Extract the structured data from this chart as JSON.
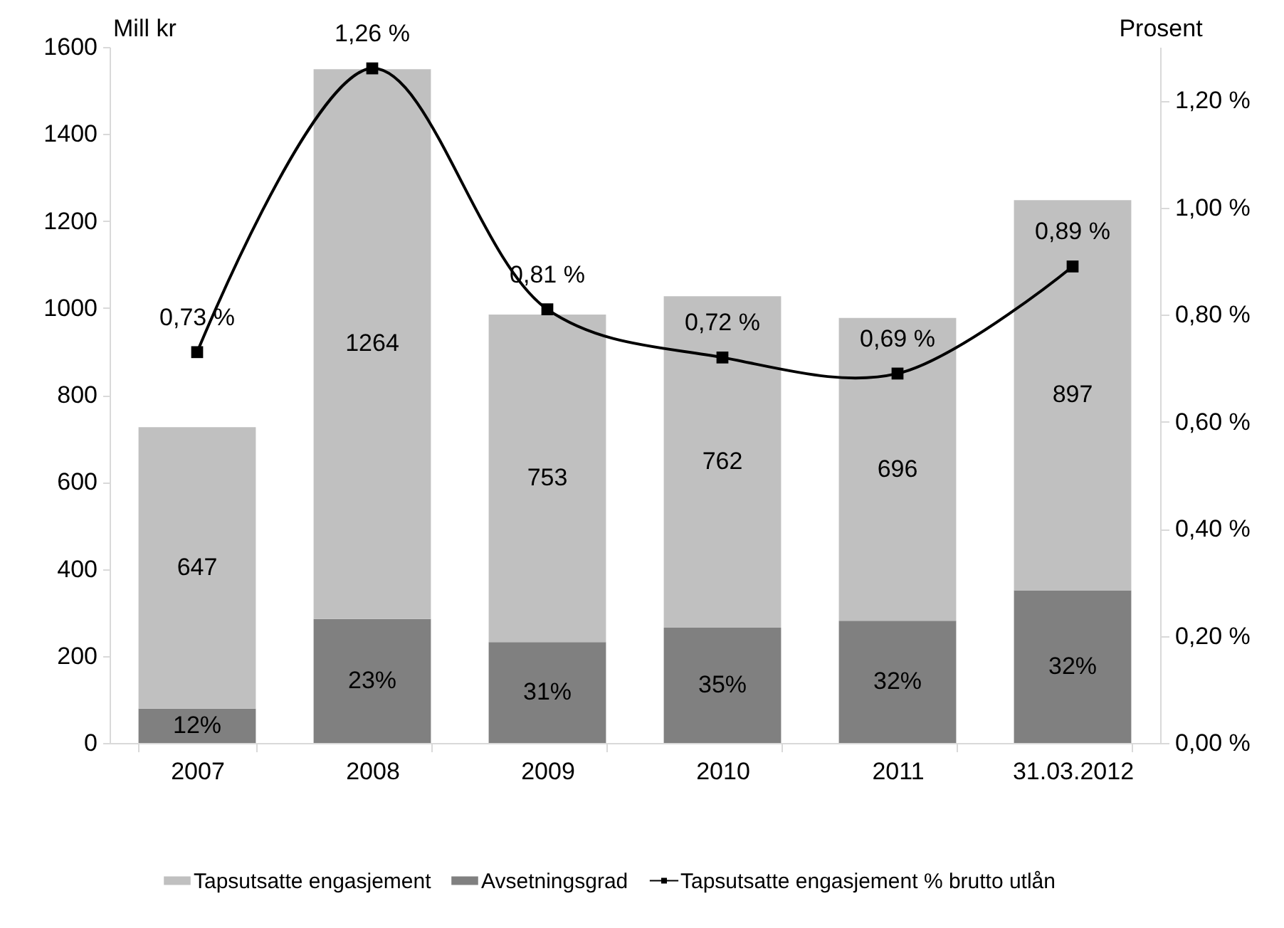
{
  "chart_data": {
    "type": "bar",
    "stacked": true,
    "categories": [
      "2007",
      "2008",
      "2009",
      "2010",
      "2011",
      "31.03.2012"
    ],
    "ylabel": "Mill kr",
    "y2label": "Prosent",
    "ylim": [
      0,
      1600
    ],
    "yticks": [
      0,
      200,
      400,
      600,
      800,
      1000,
      1200,
      1400,
      1600
    ],
    "y2lim": [
      0,
      1.3
    ],
    "y2ticks": [
      {
        "value": 0,
        "label": "0,00 %"
      },
      {
        "value": 0.2,
        "label": "0,20 %"
      },
      {
        "value": 0.4,
        "label": "0,40 %"
      },
      {
        "value": 0.6,
        "label": "0,60 %"
      },
      {
        "value": 0.8,
        "label": "0,80 %"
      },
      {
        "value": 1.0,
        "label": "1,00 %"
      },
      {
        "value": 1.2,
        "label": "1,20 %"
      }
    ],
    "legend": "bottom",
    "marker": "square",
    "annotations": [
      {
        "text": "12%",
        "x": "2007",
        "y": 79
      },
      {
        "text": "23%",
        "x": "2008",
        "y": 285
      },
      {
        "text": "31%",
        "x": "2009",
        "y": 232
      },
      {
        "text": "35%",
        "x": "2010",
        "y": 265
      },
      {
        "text": "32%",
        "x": "2011",
        "y": 281
      },
      {
        "text": "32%",
        "x": "31.03.2012",
        "y": 351
      }
    ],
    "series": [
      {
        "name": "Avsetningsgrad",
        "color": "#808080",
        "values": [
          79,
          285,
          232,
          265,
          281,
          351
        ]
      },
      {
        "name": "Tapsutsatte engasjement",
        "color": "#c0c0c0",
        "values": [
          647,
          1264,
          753,
          762,
          696,
          897
        ],
        "value_labels": [
          "647",
          "1264",
          "753",
          "762",
          "696",
          "897"
        ]
      },
      {
        "name": "Tapsutsatte engasjement % brutto utlån",
        "type": "line",
        "axis": "y2",
        "color": "#000000",
        "values": [
          0.73,
          1.26,
          0.81,
          0.72,
          0.69,
          0.89
        ],
        "value_labels": [
          "0,73 %",
          "1,26 %",
          "0,81 %",
          "0,72 %",
          "0,69 %",
          "0,89 %"
        ]
      }
    ]
  }
}
